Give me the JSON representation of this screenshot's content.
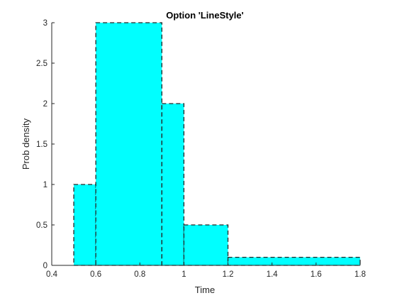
{
  "chart_data": {
    "type": "histogram",
    "title": "Option 'LineStyle'",
    "xlabel": "Time",
    "ylabel": "Prob density",
    "xlim": [
      0.4,
      1.8
    ],
    "ylim": [
      0,
      3
    ],
    "xticks": [
      0.4,
      0.6,
      0.8,
      1.0,
      1.2,
      1.4,
      1.6,
      1.8
    ],
    "xtick_labels": [
      "0.4",
      "0.6",
      "0.8",
      "1",
      "1.2",
      "1.4",
      "1.6",
      "1.8"
    ],
    "yticks": [
      0,
      0.5,
      1,
      1.5,
      2,
      2.5,
      3
    ],
    "ytick_labels": [
      "0",
      "0.5",
      "1",
      "1.5",
      "2",
      "2.5",
      "3"
    ],
    "bins": [
      {
        "x0": 0.5,
        "x1": 0.6,
        "value": 1
      },
      {
        "x0": 0.6,
        "x1": 0.9,
        "value": 3
      },
      {
        "x0": 0.9,
        "x1": 1.0,
        "value": 2
      },
      {
        "x0": 1.0,
        "x1": 1.2,
        "value": 0.5
      },
      {
        "x0": 1.2,
        "x1": 1.8,
        "value": 0.1
      }
    ],
    "fill_color": "#00ffff",
    "edge_color": "#262626",
    "edge_style": "dashed",
    "grid": false,
    "box": false
  }
}
